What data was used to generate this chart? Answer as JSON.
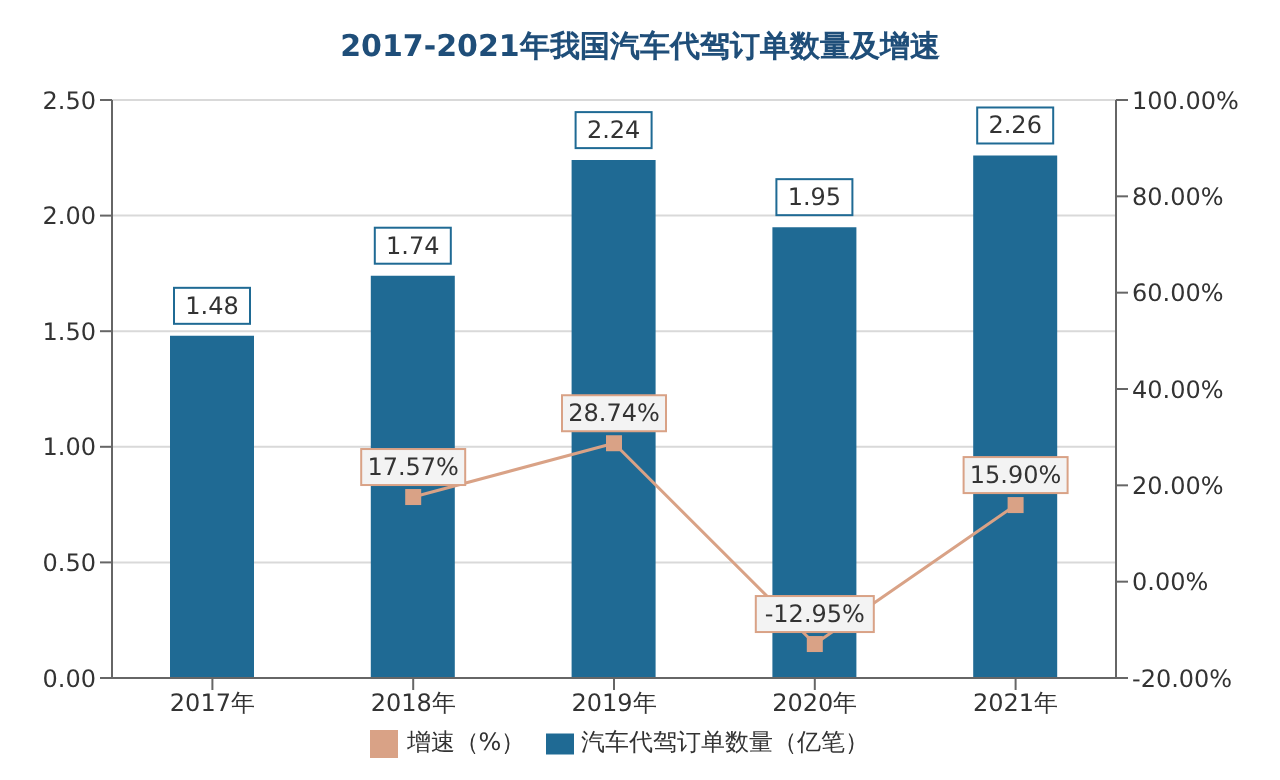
{
  "chart_data": {
    "type": "bar",
    "title": "2017-2021年我国汽车代驾订单数量及增速",
    "categories": [
      "2017年",
      "2018年",
      "2019年",
      "2020年",
      "2021年"
    ],
    "series": [
      {
        "name": "汽车代驾订单数量（亿笔）",
        "color": "#1f6a94",
        "values": [
          1.48,
          1.74,
          2.24,
          1.95,
          2.26
        ],
        "value_labels": [
          "1.48",
          "1.74",
          "2.24",
          "1.95",
          "2.26"
        ]
      },
      {
        "name": "增速（%）",
        "type": "line",
        "axis": "y2",
        "color": "#d9a286",
        "marker": "square",
        "line_style": "solid",
        "values": [
          null,
          17.57,
          28.74,
          -12.95,
          15.9
        ],
        "value_labels": [
          null,
          "17.57%",
          "28.74%",
          "-12.95%",
          "15.90%"
        ]
      }
    ],
    "ylim": [
      0,
      2.5
    ],
    "yticks": [
      {
        "value": 0,
        "label": "0.00"
      },
      {
        "value": 0.5,
        "label": "0.50"
      },
      {
        "value": 1,
        "label": "1.00"
      },
      {
        "value": 1.5,
        "label": "1.50"
      },
      {
        "value": 2,
        "label": "2.00"
      },
      {
        "value": 2.5,
        "label": "2.50"
      }
    ],
    "y2lim": [
      -20,
      100
    ],
    "y2ticks": [
      {
        "value": -20,
        "label": "-20.00%"
      },
      {
        "value": 0,
        "label": "0.00%"
      },
      {
        "value": 20,
        "label": "20.00%"
      },
      {
        "value": 40,
        "label": "40.00%"
      },
      {
        "value": 60,
        "label": "60.00%"
      },
      {
        "value": 80,
        "label": "80.00%"
      },
      {
        "value": 100,
        "label": "100.00%"
      }
    ],
    "grid": "y",
    "legend": "bottom"
  }
}
